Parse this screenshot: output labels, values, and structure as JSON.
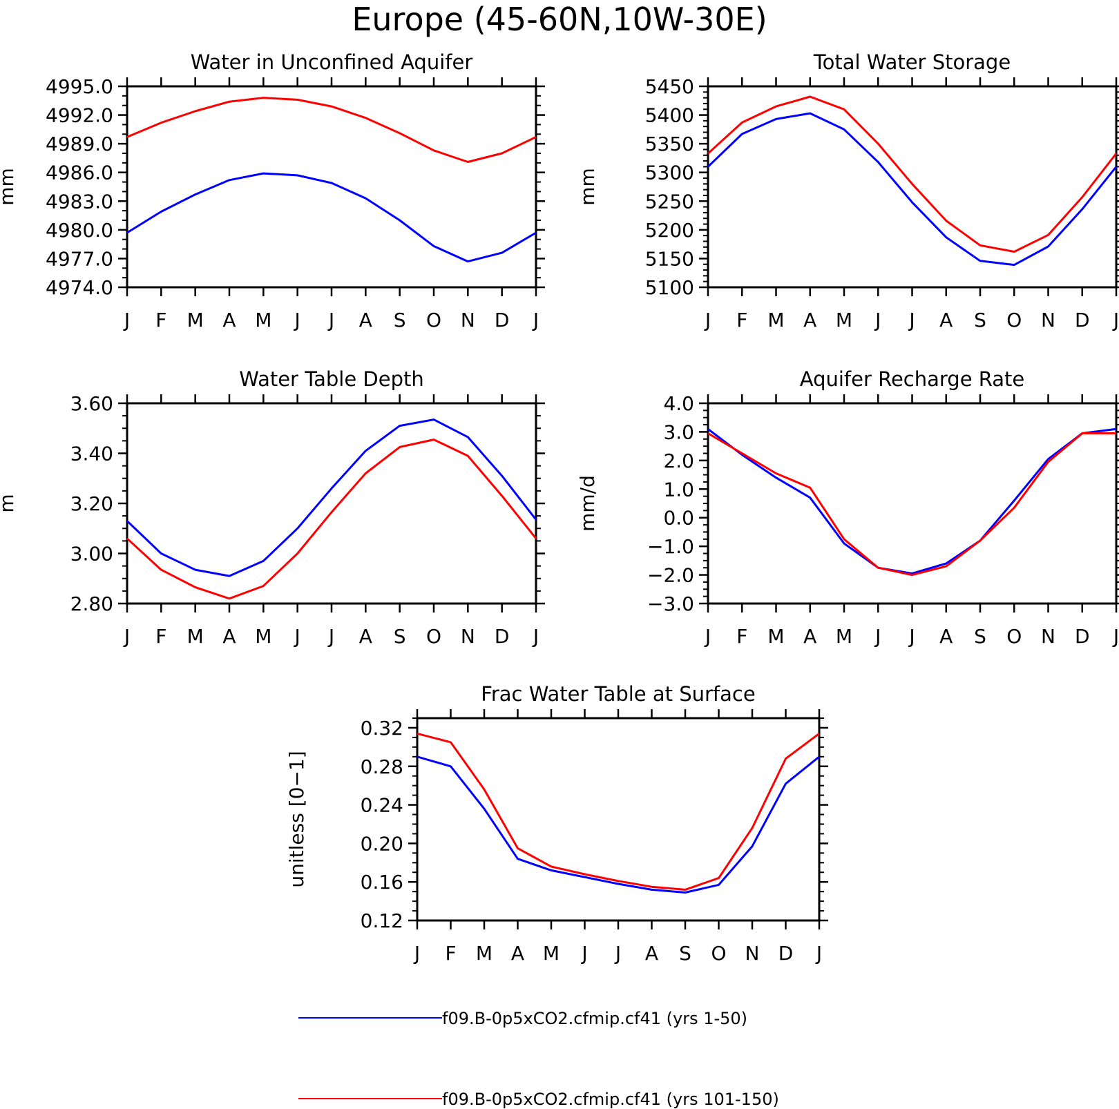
{
  "figure": {
    "title": "Europe (45-60N,10W-30E)"
  },
  "colors": {
    "series1": "#0000ff",
    "series2": "#ff0000",
    "axis": "#000000"
  },
  "legend": [
    {
      "label": "f09.B-0p5xCO2.cfmip.cf41 (yrs 1-50)",
      "color": "#0000ff"
    },
    {
      "label": "f09.B-0p5xCO2.cfmip.cf41 (yrs 101-150)",
      "color": "#ff0000"
    }
  ],
  "chart_data": [
    {
      "type": "line",
      "title": "Water in Unconfined Aquifer",
      "ylabel": "mm",
      "categories": [
        "J",
        "F",
        "M",
        "A",
        "M",
        "J",
        "J",
        "A",
        "S",
        "O",
        "N",
        "D",
        "J"
      ],
      "ylim": [
        4974.0,
        4995.0
      ],
      "yticks": [
        "4974.0",
        "4977.0",
        "4980.0",
        "4983.0",
        "4986.0",
        "4989.0",
        "4992.0",
        "4995.0"
      ],
      "series": [
        {
          "values": [
            4979.7,
            4981.9,
            4983.7,
            4985.2,
            4985.9,
            4985.7,
            4984.9,
            4983.3,
            4981.0,
            4978.3,
            4976.7,
            4977.6,
            4979.7
          ]
        },
        {
          "values": [
            4989.7,
            4991.2,
            4992.4,
            4993.4,
            4993.8,
            4993.6,
            4992.9,
            4991.7,
            4990.1,
            4988.3,
            4987.1,
            4988.0,
            4989.7
          ]
        }
      ]
    },
    {
      "type": "line",
      "title": "Total Water Storage",
      "ylabel": "mm",
      "categories": [
        "J",
        "F",
        "M",
        "A",
        "M",
        "J",
        "J",
        "A",
        "S",
        "O",
        "N",
        "D",
        "J"
      ],
      "ylim": [
        5100,
        5450
      ],
      "yticks": [
        "5100",
        "5150",
        "5200",
        "5250",
        "5300",
        "5350",
        "5400",
        "5450"
      ],
      "series": [
        {
          "values": [
            5310,
            5367,
            5393,
            5403,
            5375,
            5318,
            5248,
            5187,
            5146,
            5139,
            5171,
            5236,
            5310
          ]
        },
        {
          "values": [
            5333,
            5387,
            5415,
            5432,
            5410,
            5350,
            5280,
            5216,
            5173,
            5162,
            5191,
            5257,
            5333
          ]
        }
      ]
    },
    {
      "type": "line",
      "title": "Water Table Depth",
      "ylabel": "m",
      "categories": [
        "J",
        "F",
        "M",
        "A",
        "M",
        "J",
        "J",
        "A",
        "S",
        "O",
        "N",
        "D",
        "J"
      ],
      "ylim": [
        2.8,
        3.6
      ],
      "yticks": [
        "2.80",
        "3.00",
        "3.20",
        "3.40",
        "3.60"
      ],
      "series": [
        {
          "values": [
            3.13,
            3.0,
            2.935,
            2.91,
            2.97,
            3.1,
            3.26,
            3.41,
            3.51,
            3.535,
            3.465,
            3.31,
            3.135
          ]
        },
        {
          "values": [
            3.06,
            2.935,
            2.865,
            2.82,
            2.87,
            3.0,
            3.165,
            3.32,
            3.425,
            3.455,
            3.39,
            3.23,
            3.06
          ]
        }
      ]
    },
    {
      "type": "line",
      "title": "Aquifer Recharge Rate",
      "ylabel": "mm/d",
      "categories": [
        "J",
        "F",
        "M",
        "A",
        "M",
        "J",
        "J",
        "A",
        "S",
        "O",
        "N",
        "D",
        "J"
      ],
      "ylim": [
        -3.0,
        4.0
      ],
      "yticks": [
        "-3.0",
        "-2.0",
        "-1.0",
        "0.0",
        "1.0",
        "2.0",
        "3.0",
        "4.0"
      ],
      "series": [
        {
          "values": [
            3.1,
            2.2,
            1.4,
            0.7,
            -0.9,
            -1.75,
            -1.95,
            -1.6,
            -0.8,
            0.6,
            2.05,
            2.95,
            3.1
          ]
        },
        {
          "values": [
            2.95,
            2.25,
            1.55,
            1.05,
            -0.75,
            -1.75,
            -2.0,
            -1.7,
            -0.8,
            0.35,
            1.95,
            2.95,
            2.95
          ]
        }
      ]
    },
    {
      "type": "line",
      "title": "Frac Water Table at Surface",
      "ylabel": "unitless [0-1]",
      "categories": [
        "J",
        "F",
        "M",
        "A",
        "M",
        "J",
        "J",
        "A",
        "S",
        "O",
        "N",
        "D",
        "J"
      ],
      "ylim": [
        0.12,
        0.33
      ],
      "yticks": [
        "0.12",
        "0.16",
        "0.20",
        "0.24",
        "0.28",
        "0.32"
      ],
      "series": [
        {
          "values": [
            0.29,
            0.28,
            0.236,
            0.184,
            0.172,
            0.165,
            0.158,
            0.152,
            0.149,
            0.157,
            0.197,
            0.262,
            0.29
          ]
        },
        {
          "values": [
            0.314,
            0.305,
            0.256,
            0.195,
            0.176,
            0.168,
            0.161,
            0.155,
            0.152,
            0.164,
            0.216,
            0.288,
            0.314
          ]
        }
      ]
    }
  ]
}
